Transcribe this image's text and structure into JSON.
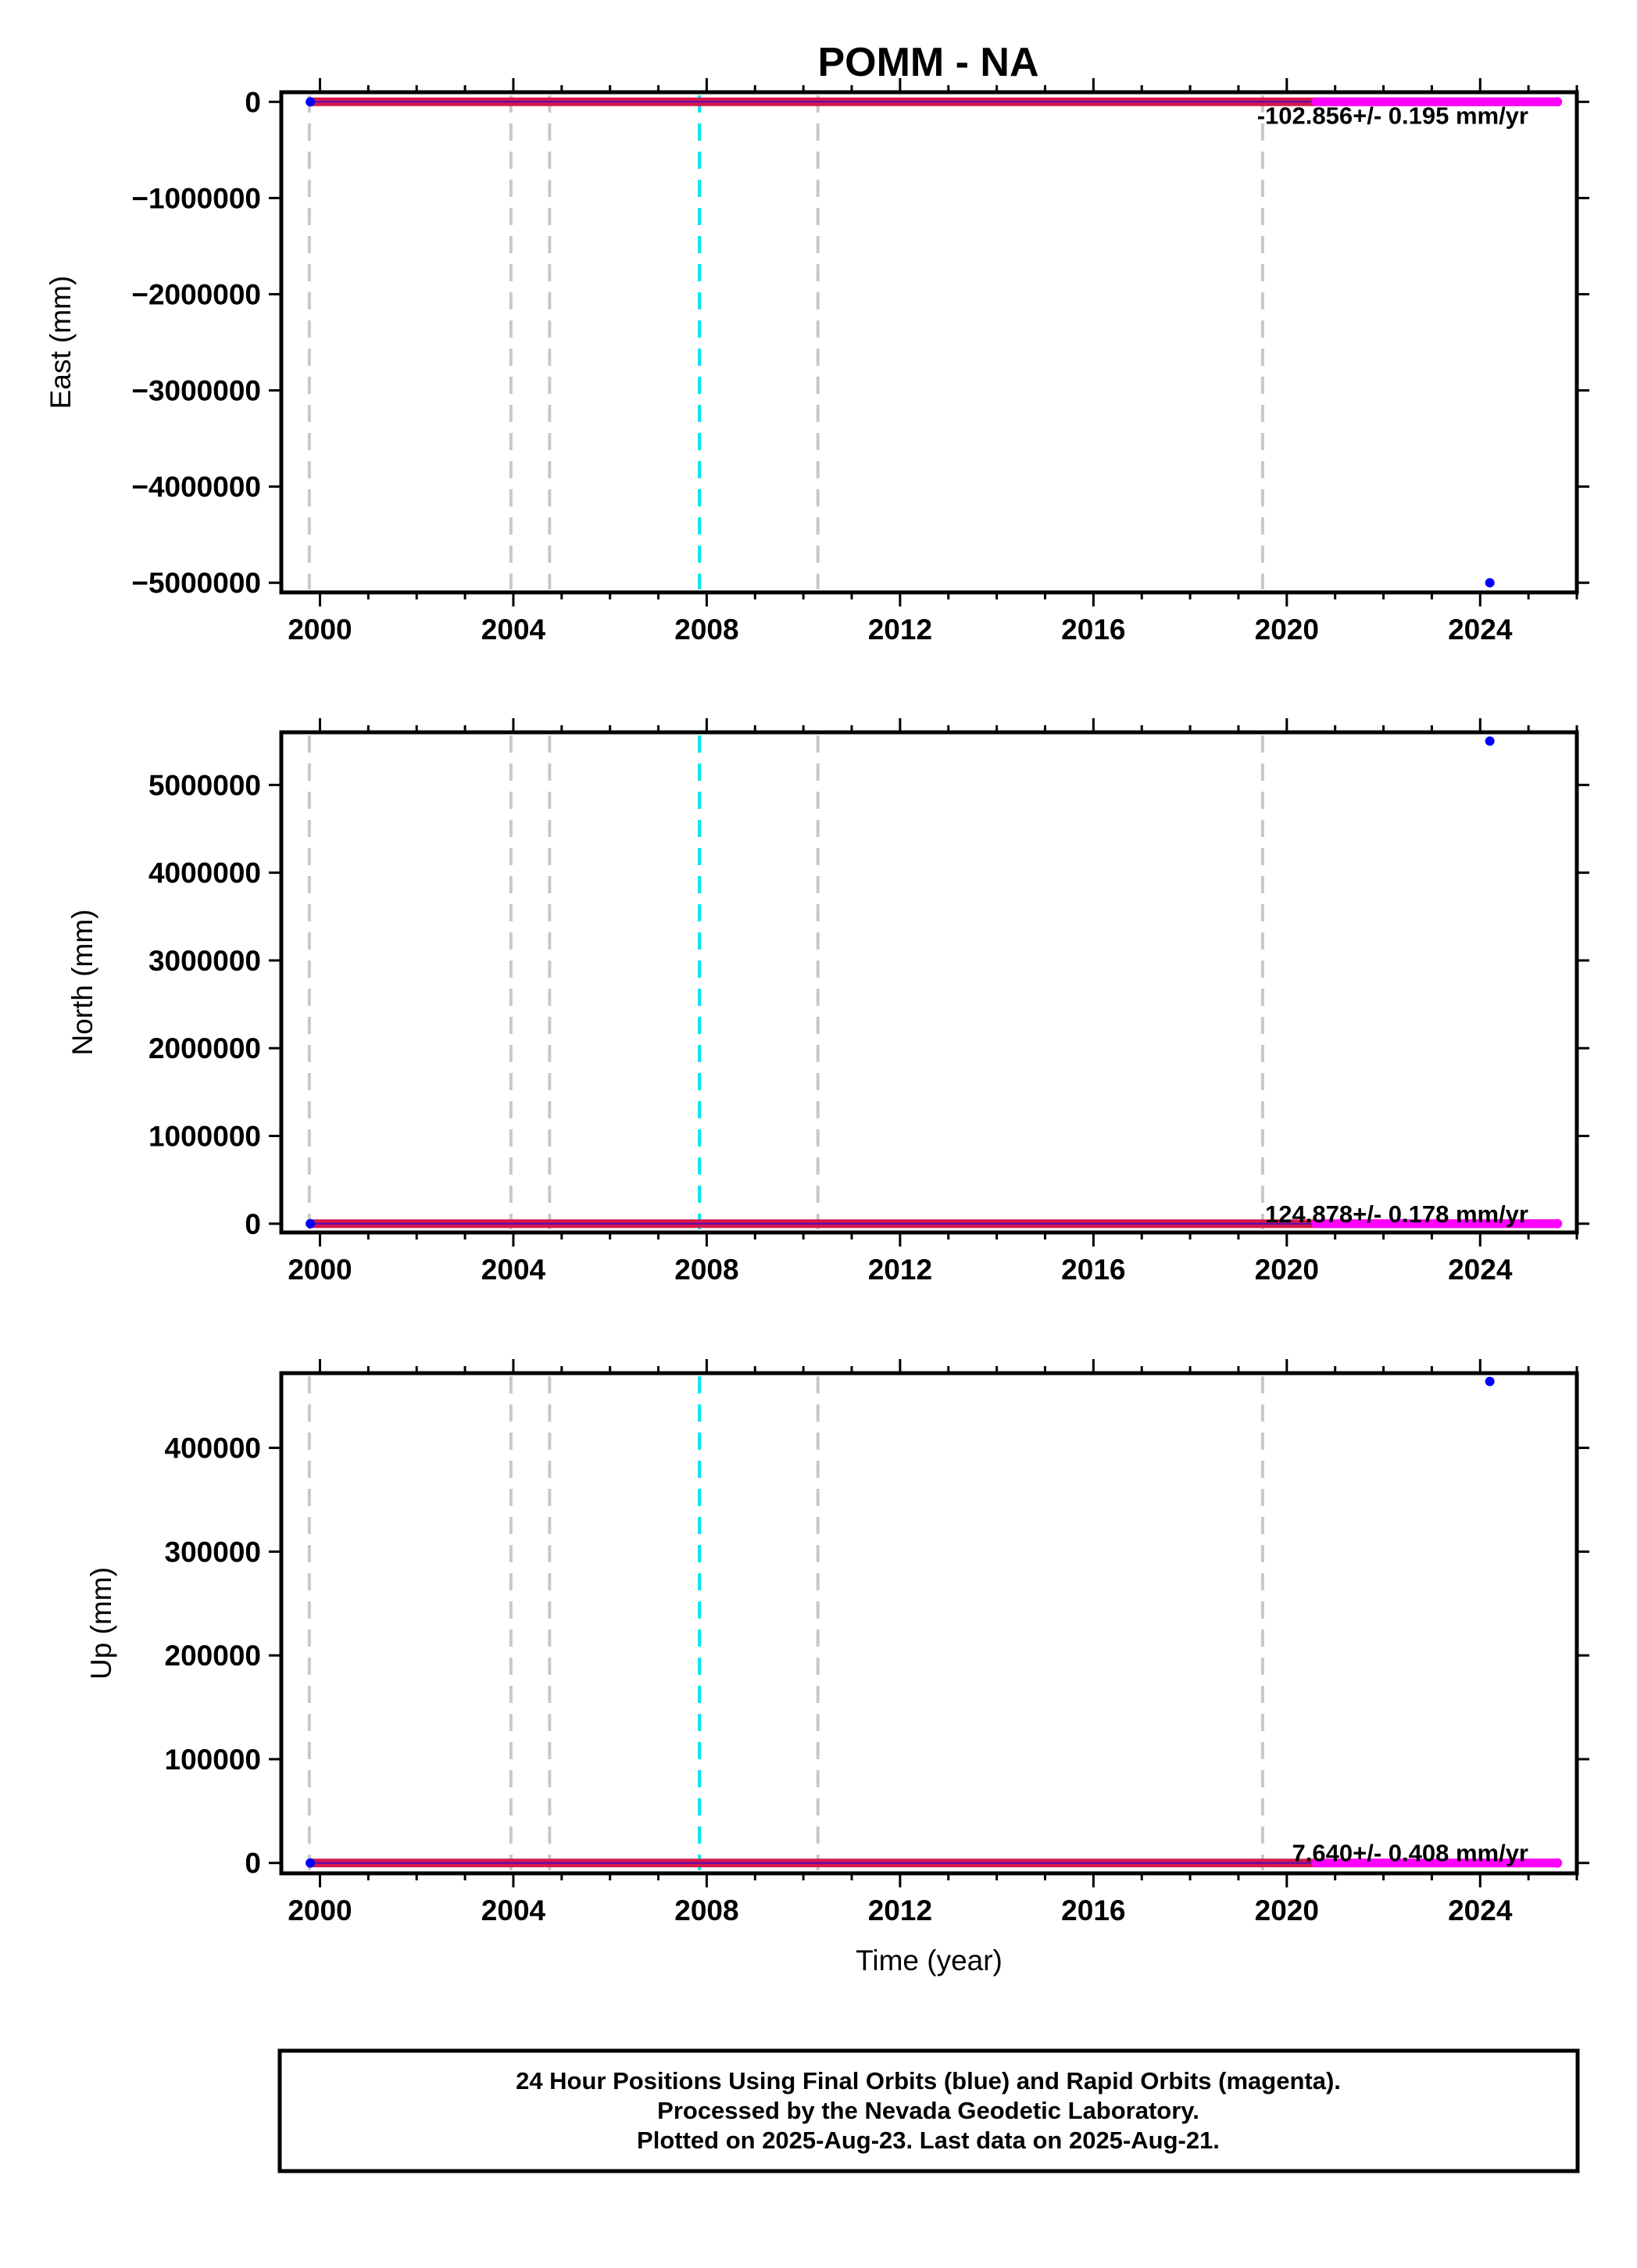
{
  "chart_title": "POMM - NA",
  "chart_data": [
    {
      "type": "scatter",
      "ylabel": "East (mm)",
      "xlabel": "",
      "xlim": [
        1999.2,
        2026.0
      ],
      "ylim": [
        -5100000,
        100000
      ],
      "yticks": [
        0,
        -1000000,
        -2000000,
        -3000000,
        -4000000,
        -5000000
      ],
      "ytick_labels": [
        "0",
        "−1000000",
        "−2000000",
        "−3000000",
        "−4000000",
        "−5000000"
      ],
      "xticks": [
        2000,
        2004,
        2008,
        2012,
        2016,
        2020,
        2024
      ],
      "xtick_labels": [
        "2000",
        "2004",
        "2008",
        "2012",
        "2016",
        "2020",
        "2024"
      ],
      "rate_text": "-102.856+/- 0.195 mm/yr",
      "series": [
        {
          "name": "Final Orbits",
          "color": "#0000ff",
          "x": [
            1999.8,
            2025.6
          ],
          "y": [
            0,
            0
          ],
          "style": "dense"
        },
        {
          "name": "Rapid Orbits",
          "color": "#ff00ff",
          "x": [
            2020.6,
            2025.6
          ],
          "y": [
            0,
            0
          ],
          "style": "dense"
        }
      ],
      "outliers": [
        {
          "x": 2024.2,
          "y": -5000000
        }
      ]
    },
    {
      "type": "scatter",
      "ylabel": "North (mm)",
      "xlabel": "",
      "xlim": [
        1999.2,
        2026.0
      ],
      "ylim": [
        -100000,
        5600000
      ],
      "yticks": [
        0,
        1000000,
        2000000,
        3000000,
        4000000,
        5000000
      ],
      "ytick_labels": [
        "0",
        "1000000",
        "2000000",
        "3000000",
        "4000000",
        "5000000"
      ],
      "xticks": [
        2000,
        2004,
        2008,
        2012,
        2016,
        2020,
        2024
      ],
      "xtick_labels": [
        "2000",
        "2004",
        "2008",
        "2012",
        "2016",
        "2020",
        "2024"
      ],
      "rate_text": "124.878+/- 0.178 mm/yr",
      "series": [
        {
          "name": "Final Orbits",
          "color": "#0000ff",
          "x": [
            1999.8,
            2025.6
          ],
          "y": [
            0,
            0
          ],
          "style": "dense"
        },
        {
          "name": "Rapid Orbits",
          "color": "#ff00ff",
          "x": [
            2020.6,
            2025.6
          ],
          "y": [
            0,
            0
          ],
          "style": "dense"
        }
      ],
      "outliers": [
        {
          "x": 2024.2,
          "y": 5500000
        }
      ]
    },
    {
      "type": "scatter",
      "ylabel": "Up (mm)",
      "xlabel": "Time (year)",
      "xlim": [
        1999.2,
        2026.0
      ],
      "ylim": [
        -10000,
        472000
      ],
      "yticks": [
        0,
        100000,
        200000,
        300000,
        400000
      ],
      "ytick_labels": [
        "0",
        "100000",
        "200000",
        "300000",
        "400000"
      ],
      "xticks": [
        2000,
        2004,
        2008,
        2012,
        2016,
        2020,
        2024
      ],
      "xtick_labels": [
        "2000",
        "2004",
        "2008",
        "2012",
        "2016",
        "2020",
        "2024"
      ],
      "rate_text": "7.640+/- 0.408 mm/yr",
      "series": [
        {
          "name": "Final Orbits",
          "color": "#0000ff",
          "x": [
            1999.8,
            2025.6
          ],
          "y": [
            0,
            0
          ],
          "style": "dense"
        },
        {
          "name": "Rapid Orbits",
          "color": "#ff00ff",
          "x": [
            2020.6,
            2025.6
          ],
          "y": [
            0,
            0
          ],
          "style": "dense"
        }
      ],
      "outliers": [
        {
          "x": 2024.2,
          "y": 464000
        }
      ]
    }
  ],
  "vertical_lines": [
    {
      "x": 1999.78,
      "color": "#c8c8c8"
    },
    {
      "x": 2003.95,
      "color": "#c8c8c8"
    },
    {
      "x": 2004.75,
      "color": "#c8c8c8"
    },
    {
      "x": 2007.85,
      "color": "#00e5ee"
    },
    {
      "x": 2010.3,
      "color": "#c8c8c8"
    },
    {
      "x": 2019.5,
      "color": "#c8c8c8"
    }
  ],
  "colors": {
    "final_orbits": "#0000ff",
    "rapid_orbits": "#ff00ff",
    "trace_band": "#d6174a",
    "equipment_change": "#c8c8c8",
    "earthquake": "#00e5ee"
  },
  "footer": {
    "line1": "24 Hour Positions Using Final Orbits (blue) and Rapid Orbits (magenta).",
    "line2": "Processed by the Nevada Geodetic Laboratory.",
    "line3": "Plotted on 2025-Aug-23. Last data on 2025-Aug-21."
  }
}
